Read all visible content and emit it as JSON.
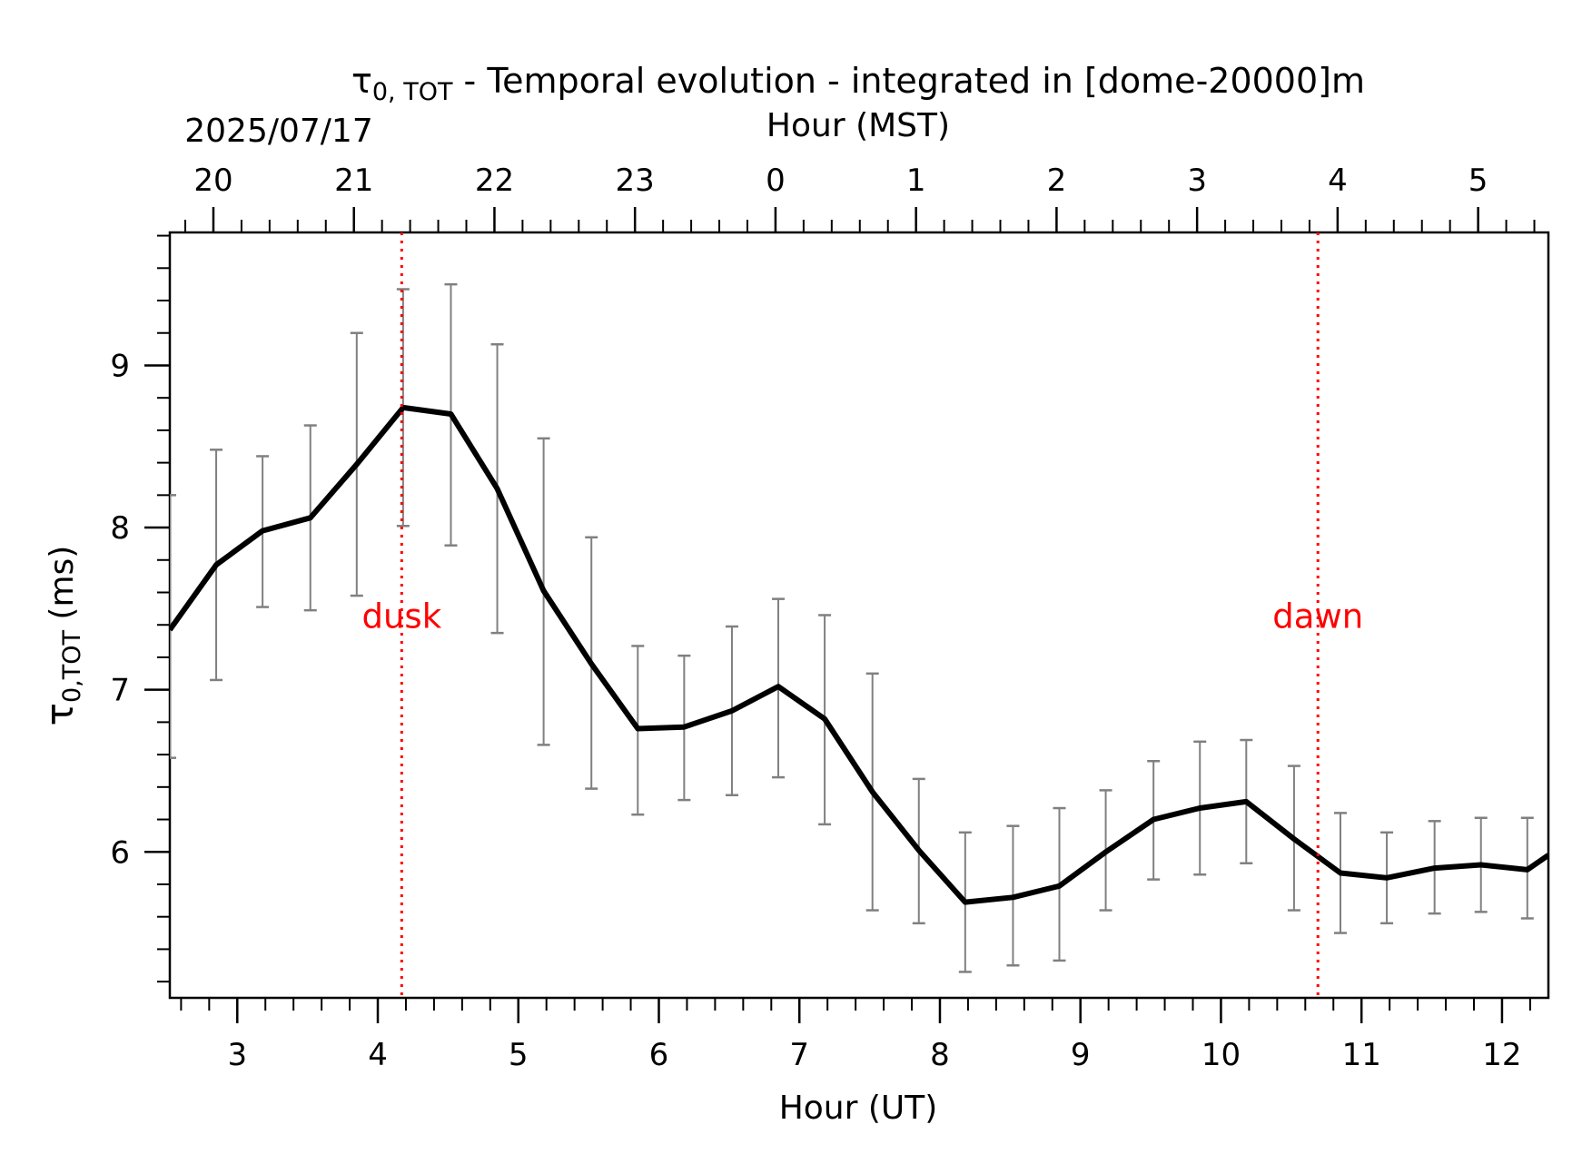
{
  "chart_data": {
    "type": "line",
    "title": "τ0, TOT - Temporal evolution - integrated in [dome-20000]m",
    "title_symbol": "τ",
    "title_subscript": "0, TOT",
    "title_rest": " - Temporal evolution - integrated in [dome-20000]m",
    "date": "2025/07/17",
    "xlabel": "Hour (UT)",
    "top_xlabel": "Hour (MST)",
    "ylabel": "τ0,TOT (ms)",
    "ylabel_symbol": "τ",
    "ylabel_subscript": "0,TOT",
    "ylabel_rest": " (ms)",
    "xlim": [
      2.52,
      12.33
    ],
    "ylim": [
      5.1,
      9.82
    ],
    "x_ticks": [
      3,
      4,
      5,
      6,
      7,
      8,
      9,
      10,
      11,
      12
    ],
    "x_tick_labels": [
      "3",
      "4",
      "5",
      "6",
      "7",
      "8",
      "9",
      "10",
      "11",
      "12"
    ],
    "top_x_ticks": [
      2.83,
      3.83,
      4.83,
      5.83,
      6.83,
      7.83,
      8.83,
      9.83,
      10.83,
      11.83
    ],
    "top_x_tick_labels": [
      "20",
      "21",
      "22",
      "23",
      "0",
      "1",
      "2",
      "3",
      "4",
      "5"
    ],
    "y_ticks": [
      6,
      7,
      8,
      9
    ],
    "y_tick_labels": [
      "6",
      "7",
      "8",
      "9"
    ],
    "series": [
      {
        "x": [
          2.52,
          2.85,
          3.18,
          3.52,
          3.85,
          4.18,
          4.52,
          4.85,
          5.18,
          5.52,
          5.85,
          6.18,
          6.52,
          6.85,
          7.18,
          7.52,
          7.85,
          8.18,
          8.52,
          8.85,
          9.18,
          9.52,
          9.85,
          10.18,
          10.52,
          10.85,
          11.18,
          11.52,
          11.85,
          12.18,
          12.33
        ],
        "y": [
          7.37,
          7.77,
          7.98,
          8.06,
          8.39,
          8.74,
          8.7,
          8.24,
          7.61,
          7.16,
          6.76,
          6.77,
          6.87,
          7.02,
          6.82,
          6.37,
          6.01,
          5.69,
          5.72,
          5.79,
          6.0,
          6.2,
          6.27,
          6.31,
          6.08,
          5.87,
          5.84,
          5.9,
          5.92,
          5.89,
          5.98
        ],
        "err_low": [
          6.58,
          7.06,
          7.51,
          7.49,
          7.58,
          8.01,
          7.89,
          7.35,
          6.66,
          6.39,
          6.23,
          6.32,
          6.35,
          6.46,
          6.17,
          5.64,
          5.56,
          5.26,
          5.3,
          5.33,
          5.64,
          5.83,
          5.86,
          5.93,
          5.64,
          5.5,
          5.56,
          5.62,
          5.63,
          5.59,
          null
        ],
        "err_high": [
          8.2,
          8.48,
          8.44,
          8.63,
          9.2,
          9.47,
          9.5,
          9.13,
          8.55,
          7.94,
          7.27,
          7.21,
          7.39,
          7.56,
          7.46,
          7.1,
          6.45,
          6.12,
          6.16,
          6.27,
          6.38,
          6.56,
          6.68,
          6.69,
          6.53,
          6.24,
          6.12,
          6.19,
          6.21,
          6.21,
          null
        ],
        "color": "#000000",
        "errorbar_color": "#808080"
      }
    ],
    "vlines": [
      {
        "x": 4.17,
        "label": "dusk",
        "color": "#ff0000"
      },
      {
        "x": 10.69,
        "label": "dawn",
        "color": "#ff0000"
      }
    ],
    "annotation_y": 7.45,
    "grid": false
  }
}
